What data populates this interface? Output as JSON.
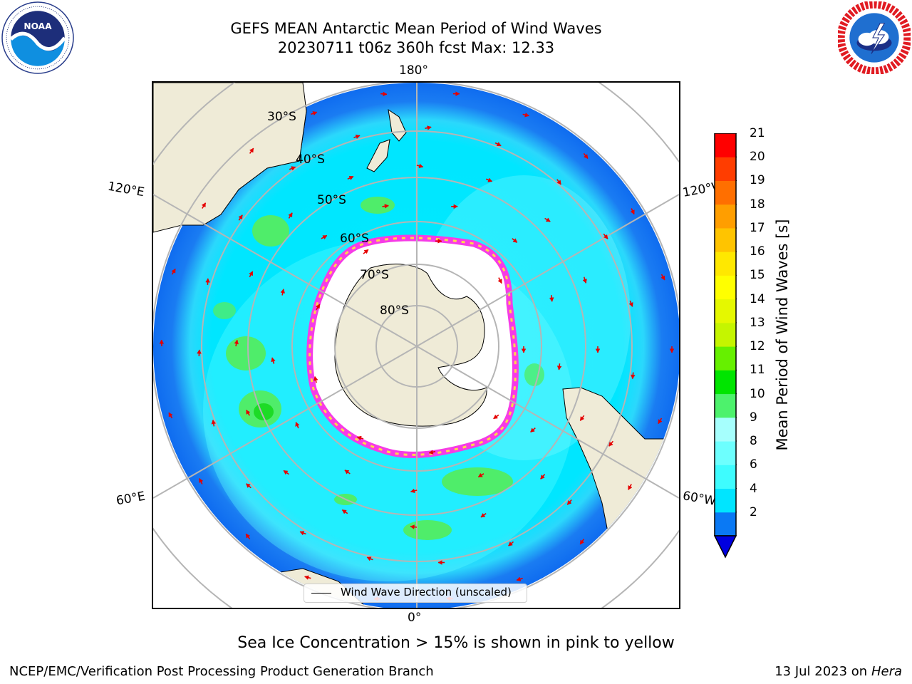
{
  "title": {
    "line1": "GEFS MEAN Antarctic Mean Period of Wind Waves",
    "line2": "20230711 t06z 360h fcst   Max: 12.33"
  },
  "map": {
    "projection": "south-polar-stereographic",
    "latitude_labels": [
      "30°S",
      "40°S",
      "50°S",
      "60°S",
      "70°S",
      "80°S"
    ],
    "longitude_labels": {
      "top": "180°",
      "bottom": "0°",
      "upper_left": "120°E",
      "upper_right": "120°W",
      "lower_left": "60°E",
      "lower_right": "60°W"
    },
    "colors": {
      "land": "#efebd7",
      "ocean_low": "#1a7cf2",
      "ocean_main": "#00eaff",
      "ocean_light": "#5ffcff",
      "ocean_pale": "#a9fffe",
      "wave_green": "#4fed6a",
      "wave_green_bright": "#1ddb26",
      "sea_ice_pink": "#f63be6",
      "sea_ice_yellow": "#ffd84a",
      "arrow": "#e50000",
      "grid": "#b5b5b5"
    }
  },
  "colorbar": {
    "label": "Mean Period of Wind Waves [s]",
    "ticks": [
      "21",
      "20",
      "19",
      "18",
      "17",
      "16",
      "15",
      "14",
      "13",
      "12",
      "11",
      "10",
      "9",
      "8",
      "6",
      "4",
      "2"
    ],
    "colors_bottom_to_top": [
      "#0a79f4",
      "#00e5ff",
      "#3efcfe",
      "#6dfffe",
      "#a6fffd",
      "#4df26c",
      "#00e500",
      "#66f000",
      "#c5f500",
      "#e5f800",
      "#ffff00",
      "#ffe800",
      "#ffc400",
      "#ff9e00",
      "#ff6f00",
      "#ff3d00",
      "#ff0000"
    ],
    "extend_color": "#0000e0"
  },
  "legend": {
    "label": "Wind Wave Direction (unscaled)"
  },
  "note": "Sea Ice Concentration > 15% is shown in pink to yellow",
  "footer": {
    "left": "NCEP/EMC/Verification Post Processing Product Generation Branch",
    "date": "13 Jul 2023 on ",
    "machine": "Hera"
  },
  "logos": {
    "noaa_icon": "noaa-logo",
    "nws_icon": "nws-logo"
  }
}
